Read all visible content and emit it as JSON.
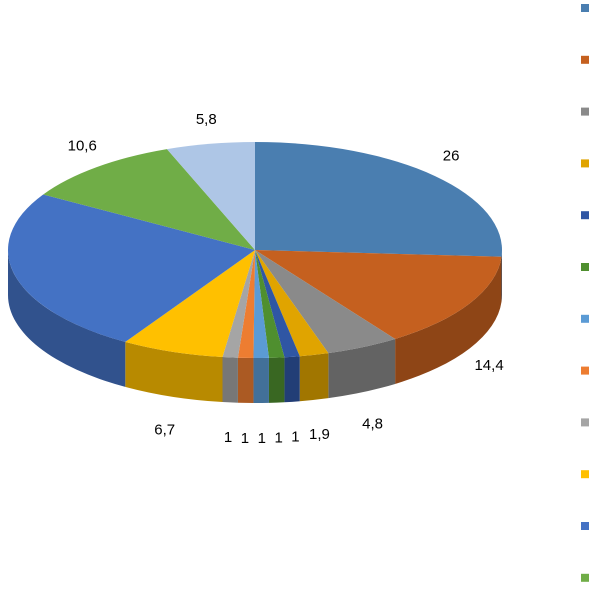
{
  "chart_data": {
    "type": "pie",
    "values": [
      26,
      14.4,
      4.8,
      1.9,
      1,
      1,
      1,
      1,
      1,
      6.7,
      24.8,
      10.6,
      5.8
    ],
    "value_labels": [
      "26",
      "14,4",
      "4,8",
      "1,9",
      "1",
      "1",
      "1",
      "1",
      "1",
      "6,7",
      null,
      "10,6",
      "5,8"
    ],
    "colors": [
      "#4a7eb0",
      "#c5601f",
      "#8a8a8a",
      "#e0a400",
      "#2f56a4",
      "#4f8f2f",
      "#5b9bd5",
      "#ed7d31",
      "#a5a5a5",
      "#ffc000",
      "#4472c4",
      "#70ad47",
      "#aec6e6"
    ]
  }
}
